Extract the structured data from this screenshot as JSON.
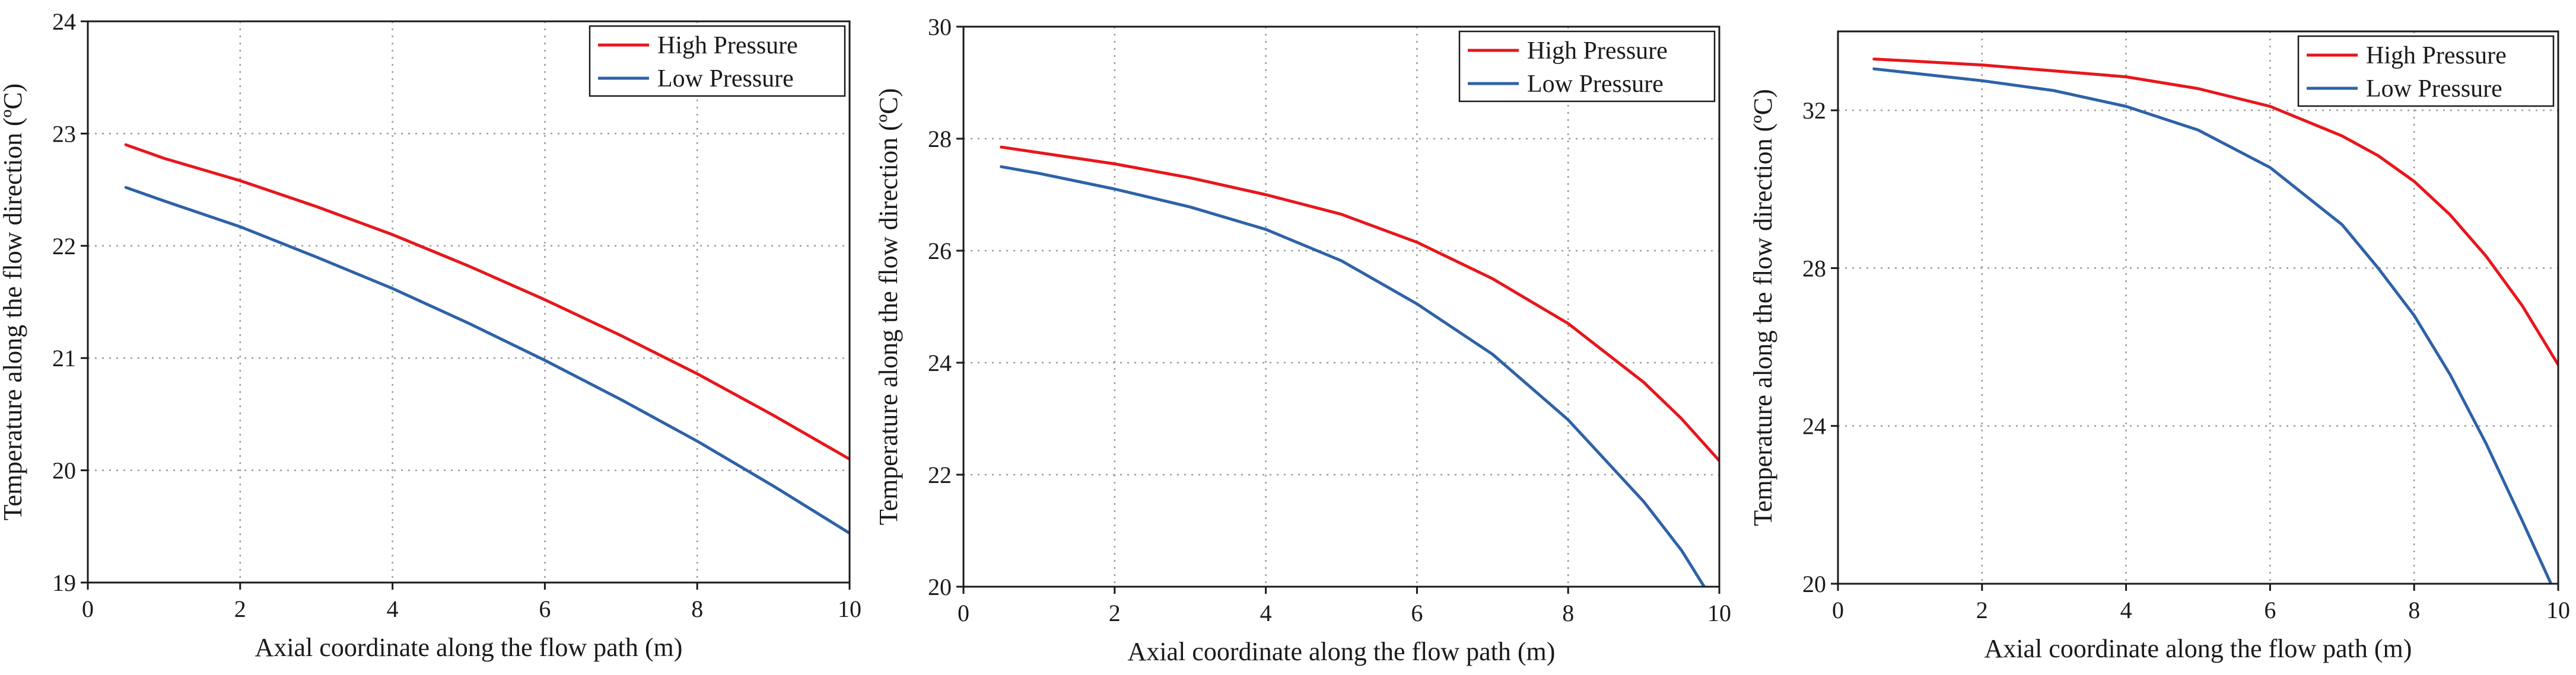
{
  "colors": {
    "high": "#e8161b",
    "low": "#2e62a8"
  },
  "chart_data": [
    {
      "type": "line",
      "title": "",
      "xlabel": "Axial coordinate along the flow path (m)",
      "ylabel": "Temperature along the flow direction (ºC)",
      "xlim": [
        0,
        10
      ],
      "ylim": [
        19,
        24
      ],
      "xticks": [
        0,
        2,
        4,
        6,
        8,
        10
      ],
      "yticks": [
        19,
        20,
        21,
        22,
        23,
        24
      ],
      "xtick_labels": [
        "0",
        "2",
        "4",
        "6",
        "8",
        "10"
      ],
      "ytick_labels": [
        "19",
        "20",
        "21",
        "22",
        "23",
        "24"
      ],
      "legend_position": "top-right",
      "series": [
        {
          "name": "High Pressure",
          "color": "#e8161b",
          "x": [
            0.5,
            1,
            2,
            3,
            4,
            5,
            6,
            7,
            8,
            9,
            10
          ],
          "y": [
            22.9,
            22.78,
            22.58,
            22.35,
            22.1,
            21.82,
            21.52,
            21.2,
            20.86,
            20.49,
            20.1
          ]
        },
        {
          "name": "Low Pressure",
          "color": "#2e62a8",
          "x": [
            0.5,
            1,
            2,
            3,
            4,
            5,
            6,
            7,
            8,
            9,
            10
          ],
          "y": [
            22.52,
            22.4,
            22.17,
            21.9,
            21.62,
            21.31,
            20.98,
            20.63,
            20.26,
            19.86,
            19.44
          ]
        }
      ]
    },
    {
      "type": "line",
      "title": "",
      "xlabel": "Axial coordinate along the flow path (m)",
      "ylabel": "Temperature along the flow direction (ºC)",
      "xlim": [
        0,
        10
      ],
      "ylim": [
        20,
        30
      ],
      "xticks": [
        0,
        2,
        4,
        6,
        8,
        10
      ],
      "yticks": [
        20,
        22,
        24,
        26,
        28,
        30
      ],
      "xtick_labels": [
        "0",
        "2",
        "4",
        "6",
        "8",
        "10"
      ],
      "ytick_labels": [
        "20",
        "22",
        "24",
        "26",
        "28",
        "30"
      ],
      "legend_position": "top-right",
      "series": [
        {
          "name": "High Pressure",
          "color": "#e8161b",
          "x": [
            0.5,
            1,
            2,
            3,
            4,
            5,
            6,
            7,
            8,
            9,
            9.5,
            10
          ],
          "y": [
            27.85,
            27.75,
            27.55,
            27.3,
            27.0,
            26.65,
            26.15,
            25.5,
            24.7,
            23.65,
            23.0,
            22.25
          ]
        },
        {
          "name": "Low Pressure",
          "color": "#2e62a8",
          "x": [
            0.5,
            1,
            2,
            3,
            4,
            5,
            6,
            7,
            8,
            9,
            9.5,
            9.8
          ],
          "y": [
            27.5,
            27.38,
            27.1,
            26.78,
            26.38,
            25.82,
            25.05,
            24.15,
            22.98,
            21.52,
            20.65,
            20.0
          ]
        }
      ]
    },
    {
      "type": "line",
      "title": "",
      "xlabel": "Axial coordinate along the flow path (m)",
      "ylabel": "Temperature along the flow direction (ºC)",
      "xlim": [
        0,
        10
      ],
      "ylim": [
        20,
        34
      ],
      "xticks": [
        0,
        2,
        4,
        6,
        8,
        10
      ],
      "yticks": [
        20,
        24,
        28,
        32
      ],
      "xtick_labels": [
        "0",
        "2",
        "4",
        "6",
        "8",
        "10"
      ],
      "ytick_labels": [
        "20",
        "24",
        "28",
        "32"
      ],
      "legend_position": "top-right",
      "series": [
        {
          "name": "High Pressure",
          "color": "#e8161b",
          "x": [
            0.5,
            1,
            2,
            3,
            4,
            5,
            6,
            7,
            7.5,
            8,
            8.5,
            9,
            9.5,
            10
          ],
          "y": [
            33.3,
            33.25,
            33.15,
            33.0,
            32.85,
            32.55,
            32.1,
            31.35,
            30.85,
            30.2,
            29.35,
            28.3,
            27.05,
            25.55
          ]
        },
        {
          "name": "Low Pressure",
          "color": "#2e62a8",
          "x": [
            0.5,
            1,
            2,
            3,
            4,
            5,
            6,
            7,
            7.5,
            8,
            8.5,
            9,
            9.5,
            9.9
          ],
          "y": [
            33.05,
            32.95,
            32.75,
            32.5,
            32.1,
            31.5,
            30.55,
            29.1,
            28.0,
            26.8,
            25.3,
            23.55,
            21.6,
            20.0
          ]
        }
      ]
    }
  ]
}
